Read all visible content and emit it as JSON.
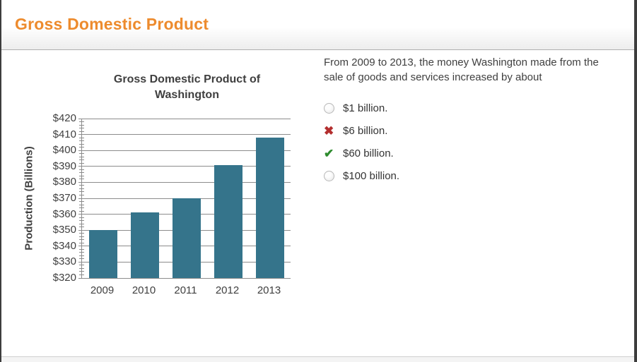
{
  "page": {
    "title": "Gross Domestic Product"
  },
  "question": {
    "prompt": "From 2009 to 2013, the money Washington made from the sale of goods and services increased by about",
    "options": [
      {
        "label": "$1 billion.",
        "marker": "radio"
      },
      {
        "label": "$6 billion.",
        "marker": "incorrect-x"
      },
      {
        "label": "$60 billion.",
        "marker": "correct-check"
      },
      {
        "label": "$100 billion.",
        "marker": "radio"
      }
    ]
  },
  "chart_data": {
    "type": "bar",
    "title": "Gross Domestic Product of Washington",
    "categories": [
      "2009",
      "2010",
      "2011",
      "2012",
      "2013"
    ],
    "values": [
      350,
      361,
      370,
      391,
      408
    ],
    "xlabel": "",
    "ylabel": "Production (Billions)",
    "ylim": [
      320,
      420
    ],
    "ytick_step": 10,
    "minor_tick_step": 2,
    "ytick_labels": [
      "$320",
      "$330",
      "$340",
      "$350",
      "$360",
      "$370",
      "$380",
      "$390",
      "$400",
      "$410",
      "$420"
    ],
    "grid": true,
    "legend": "none",
    "bar_color": "#35748B"
  },
  "colors": {
    "header_text": "#ED8B2D",
    "bar": "#35748B",
    "axis_text": "#404040",
    "grid": "#8C8C8C",
    "correct": "#2E8B2E",
    "incorrect": "#B32E2E"
  },
  "icons": {
    "incorrect_glyph": "✖",
    "correct_glyph": "✔"
  }
}
